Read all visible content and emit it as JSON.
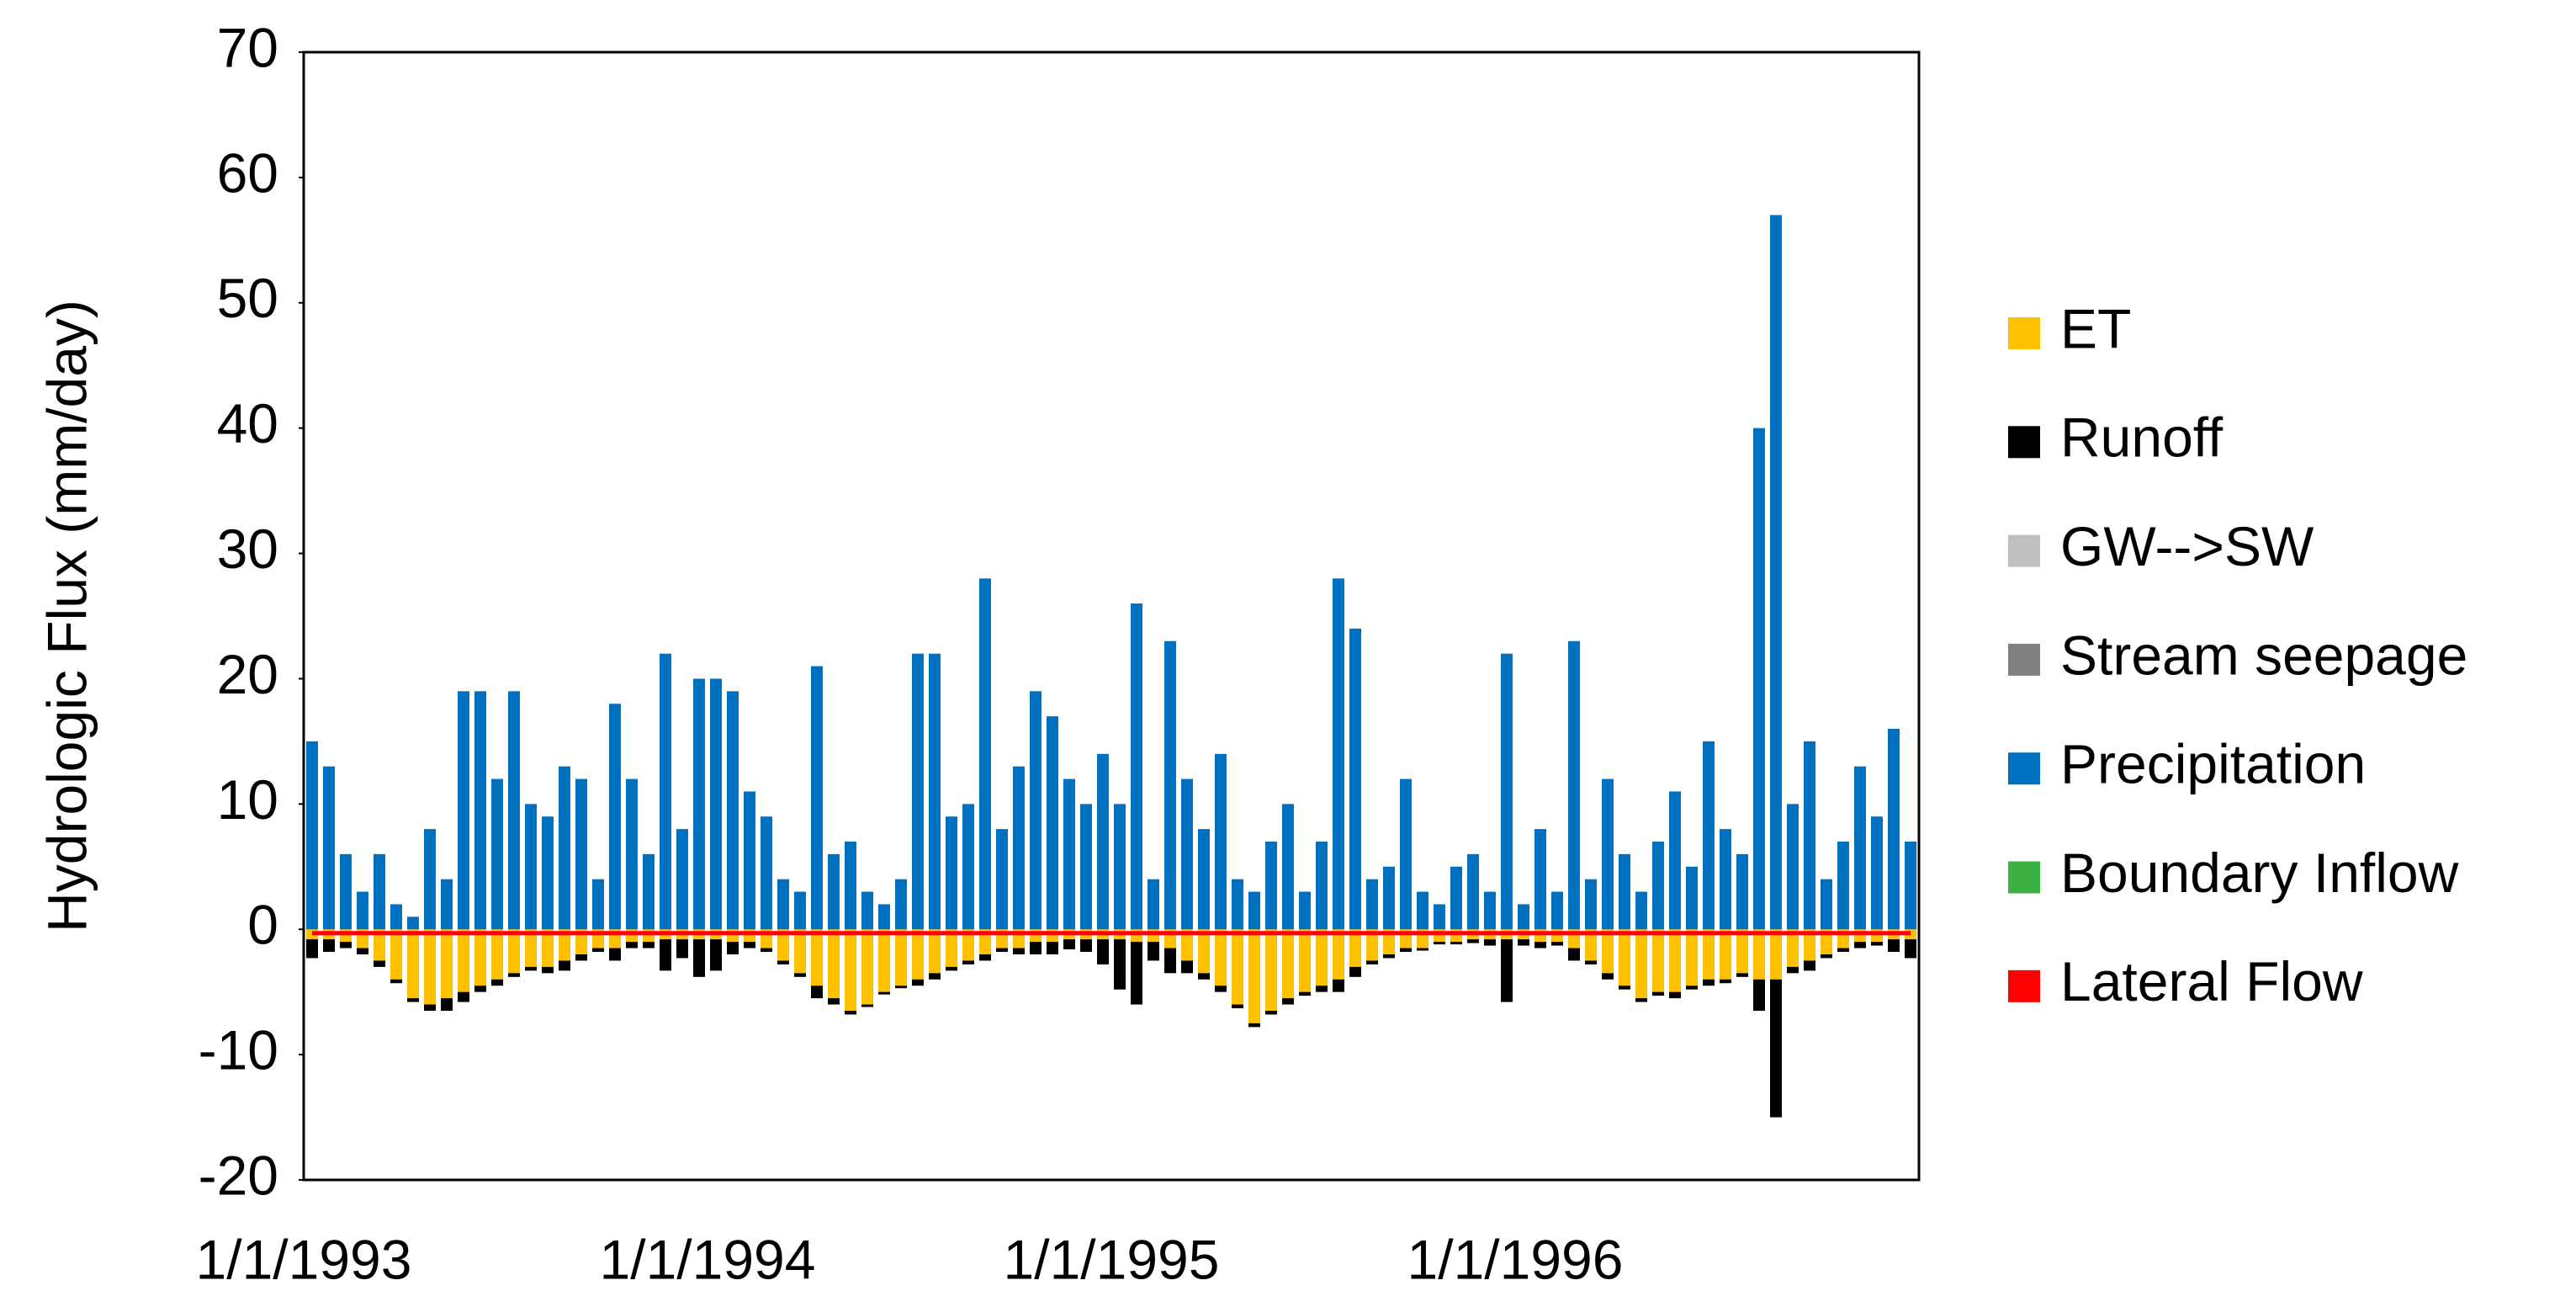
{
  "chart_data": {
    "type": "bar",
    "stacked": true,
    "y_label": "Hydrologic Flux (mm/day)",
    "ylim": [
      -20,
      70
    ],
    "yticks": [
      -20,
      -10,
      0,
      10,
      20,
      30,
      40,
      50,
      60,
      70
    ],
    "grid": false,
    "legend": "right",
    "categories": [
      "1/1/1993",
      null,
      null,
      null,
      null,
      null,
      null,
      null,
      null,
      null,
      null,
      null,
      null,
      null,
      null,
      null,
      null,
      null,
      null,
      null,
      null,
      null,
      null,
      null,
      "1/1/1994",
      null,
      null,
      null,
      null,
      null,
      null,
      null,
      null,
      null,
      null,
      null,
      null,
      null,
      null,
      null,
      null,
      null,
      null,
      null,
      null,
      null,
      null,
      null,
      "1/1/1995",
      null,
      null,
      null,
      null,
      null,
      null,
      null,
      null,
      null,
      null,
      null,
      null,
      null,
      null,
      null,
      null,
      null,
      null,
      null,
      null,
      null,
      null,
      null,
      "1/1/1996",
      null,
      null,
      null,
      null,
      null,
      null,
      null,
      null,
      null,
      null,
      null,
      null,
      null,
      null,
      null,
      null,
      null,
      null,
      null,
      null,
      null,
      null,
      null
    ],
    "series": [
      {
        "name": "ET",
        "color": "#ffc000",
        "values": [
          -0.8,
          -0.8,
          -1,
          -1.5,
          -2.5,
          -4,
          -5.5,
          -6,
          -5.5,
          -5,
          -4.5,
          -4,
          -3.5,
          -3,
          -3,
          -2.5,
          -2,
          -1.5,
          -1.5,
          -1,
          -1,
          -0.8,
          -0.8,
          -0.8,
          -0.8,
          -1,
          -1,
          -1.5,
          -2.5,
          -3.5,
          -4.5,
          -5.5,
          -6.5,
          -6,
          -5,
          -4.5,
          -4,
          -3.5,
          -3,
          -2.5,
          -2,
          -1.5,
          -1.5,
          -1,
          -1,
          -0.8,
          -0.8,
          -0.8,
          -0.8,
          -1,
          -1,
          -1.5,
          -2.5,
          -3.5,
          -4.5,
          -6,
          -7.5,
          -6.5,
          -5.5,
          -5,
          -4.5,
          -4,
          -3,
          -2.5,
          -2,
          -1.5,
          -1.5,
          -1,
          -1,
          -0.8,
          -0.8,
          -0.8,
          -0.8,
          -1,
          -1,
          -1.5,
          -2.5,
          -3.5,
          -4.5,
          -5.5,
          -5,
          -5,
          -4.5,
          -4,
          -4,
          -3.5,
          -4,
          -4,
          -3,
          -2.5,
          -2,
          -1.5,
          -1,
          -1,
          -0.8,
          -0.8
        ]
      },
      {
        "name": "Runoff",
        "color": "#000000",
        "values": [
          -1.5,
          -1,
          -0.5,
          -0.5,
          -0.5,
          -0.3,
          -0.3,
          -0.5,
          -1,
          -0.8,
          -0.5,
          -0.5,
          -0.3,
          -0.3,
          -0.5,
          -0.8,
          -0.5,
          -0.3,
          -1,
          -0.5,
          -0.5,
          -2.5,
          -1.5,
          -3,
          -2.5,
          -1,
          -0.5,
          -0.3,
          -0.3,
          -0.3,
          -1,
          -0.5,
          -0.3,
          -0.2,
          -0.2,
          -0.2,
          -0.5,
          -0.5,
          -0.3,
          -0.3,
          -0.5,
          -0.3,
          -0.5,
          -1,
          -1,
          -0.8,
          -1,
          -2,
          -4,
          -5,
          -1.5,
          -2,
          -1,
          -0.5,
          -0.5,
          -0.3,
          -0.3,
          -0.3,
          -0.5,
          -0.3,
          -0.5,
          -1,
          -0.8,
          -0.3,
          -0.3,
          -0.3,
          -0.2,
          -0.2,
          -0.2,
          -0.3,
          -0.5,
          -5,
          -0.5,
          -0.5,
          -0.3,
          -1,
          -0.3,
          -0.5,
          -0.3,
          -0.3,
          -0.3,
          -0.5,
          -0.3,
          -0.5,
          -0.3,
          -0.3,
          -2.5,
          -11,
          -0.5,
          -0.8,
          -0.3,
          -0.3,
          -0.5,
          -0.3,
          -1,
          -1.5
        ]
      },
      {
        "name": "GW-->SW",
        "color": "#bfbfbf",
        "values": [
          0,
          0,
          0,
          0,
          0,
          0,
          0,
          0,
          0,
          0,
          0,
          0,
          0,
          0,
          0,
          0,
          0,
          0,
          0,
          0,
          0,
          0,
          0,
          0,
          0,
          0,
          0,
          0,
          0,
          0,
          0,
          0,
          0,
          0,
          0,
          0,
          0,
          0,
          0,
          0,
          0,
          0,
          0,
          0,
          0,
          0,
          0,
          0,
          0,
          0,
          0,
          0,
          0,
          0,
          0,
          0,
          0,
          0,
          0,
          0,
          0,
          0,
          0,
          0,
          0,
          0,
          0,
          0,
          0,
          0,
          0,
          0,
          0,
          0,
          0,
          0,
          0,
          0,
          0,
          0,
          0,
          0,
          0,
          0,
          0,
          0,
          0,
          0,
          0,
          0,
          0,
          0,
          0,
          0,
          0,
          0
        ]
      },
      {
        "name": "Stream seepage",
        "color": "#808080",
        "values": [
          0,
          0,
          0,
          0,
          0,
          0,
          0,
          0,
          0,
          0,
          0,
          0,
          0,
          0,
          0,
          0,
          0,
          0,
          0,
          0,
          0,
          0,
          0,
          0,
          0,
          0,
          0,
          0,
          0,
          0,
          0,
          0,
          0,
          0,
          0,
          0,
          0,
          0,
          0,
          0,
          0,
          0,
          0,
          0,
          0,
          0,
          0,
          0,
          0,
          0,
          0,
          0,
          0,
          0,
          0,
          0,
          0,
          0,
          0,
          0,
          0,
          0,
          0,
          0,
          0,
          0,
          0,
          0,
          0,
          0,
          0,
          0,
          0,
          0,
          0,
          0,
          0,
          0,
          0,
          0,
          0,
          0,
          0,
          0,
          0,
          0,
          0,
          0,
          0,
          0,
          0,
          0,
          0,
          0,
          0,
          0
        ]
      },
      {
        "name": "Precipitation",
        "color": "#0070c0",
        "values": [
          15,
          13,
          6,
          3,
          6,
          2,
          1,
          8,
          4,
          19,
          19,
          12,
          19,
          10,
          9,
          13,
          12,
          4,
          18,
          12,
          6,
          22,
          8,
          20,
          20,
          19,
          11,
          9,
          4,
          3,
          21,
          6,
          7,
          3,
          2,
          4,
          22,
          22,
          9,
          10,
          28,
          8,
          13,
          19,
          17,
          12,
          10,
          14,
          10,
          26,
          4,
          23,
          12,
          8,
          14,
          4,
          3,
          7,
          10,
          3,
          7,
          28,
          24,
          4,
          5,
          12,
          3,
          2,
          5,
          6,
          3,
          22,
          2,
          8,
          3,
          23,
          4,
          12,
          6,
          3,
          7,
          11,
          5,
          15,
          8,
          6,
          40,
          57,
          10,
          15,
          4,
          7,
          13,
          9,
          16,
          7
        ]
      },
      {
        "name": "Boundary Inflow",
        "color": "#3cb043",
        "values": [
          0,
          0,
          0,
          0,
          0,
          0,
          0,
          0,
          0,
          0,
          0,
          0,
          0,
          0,
          0,
          0,
          0,
          0,
          0,
          0,
          0,
          0,
          0,
          0,
          0,
          0,
          0,
          0,
          0,
          0,
          0,
          0,
          0,
          0,
          0,
          0,
          0,
          0,
          0,
          0,
          0,
          0,
          0,
          0,
          0,
          0,
          0,
          0,
          0,
          0,
          0,
          0,
          0,
          0,
          0,
          0,
          0,
          0,
          0,
          0,
          0,
          0,
          0,
          0,
          0,
          0,
          0,
          0,
          0,
          0,
          0,
          0,
          0,
          0,
          0,
          0,
          0,
          0,
          0,
          0,
          0,
          0,
          0,
          0,
          0,
          0,
          0,
          0,
          0,
          0,
          0,
          0,
          0,
          0,
          0,
          0
        ]
      },
      {
        "name": "Lateral Flow",
        "color": "#ff0000",
        "type": "line",
        "values": [
          -0.3,
          -0.3,
          -0.3,
          -0.3,
          -0.3,
          -0.3,
          -0.3,
          -0.3,
          -0.3,
          -0.3,
          -0.3,
          -0.3,
          -0.3,
          -0.3,
          -0.3,
          -0.3,
          -0.3,
          -0.3,
          -0.3,
          -0.3,
          -0.3,
          -0.3,
          -0.3,
          -0.3,
          -0.3,
          -0.3,
          -0.3,
          -0.3,
          -0.3,
          -0.3,
          -0.3,
          -0.3,
          -0.3,
          -0.3,
          -0.3,
          -0.3,
          -0.3,
          -0.3,
          -0.3,
          -0.3,
          -0.3,
          -0.3,
          -0.3,
          -0.3,
          -0.3,
          -0.3,
          -0.3,
          -0.3,
          -0.3,
          -0.3,
          -0.3,
          -0.3,
          -0.3,
          -0.3,
          -0.3,
          -0.3,
          -0.3,
          -0.3,
          -0.3,
          -0.3,
          -0.3,
          -0.3,
          -0.3,
          -0.3,
          -0.3,
          -0.3,
          -0.3,
          -0.3,
          -0.3,
          -0.3,
          -0.3,
          -0.3,
          -0.3,
          -0.3,
          -0.3,
          -0.3,
          -0.3,
          -0.3,
          -0.3,
          -0.3,
          -0.3,
          -0.3,
          -0.3,
          -0.3,
          -0.3,
          -0.3,
          -0.3,
          -0.3,
          -0.3,
          -0.3,
          -0.3,
          -0.3,
          -0.3,
          -0.3,
          -0.3,
          -0.3
        ]
      }
    ]
  }
}
